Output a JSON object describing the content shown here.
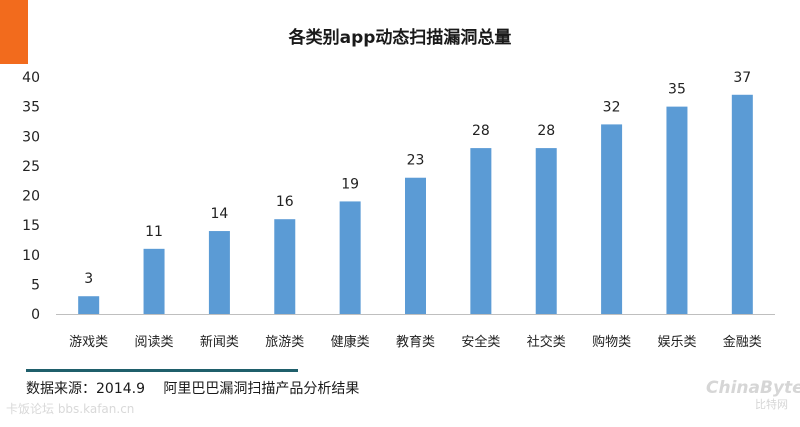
{
  "colors": {
    "accent": "#f26b1d",
    "bar": "#5b9bd5",
    "axis": "#bfbfbf",
    "rule": "#1f5f6b"
  },
  "chart_data": {
    "type": "bar",
    "title": "各类别app动态扫描漏洞总量",
    "xlabel": "",
    "ylabel": "",
    "categories": [
      "游戏类",
      "阅读类",
      "新闻类",
      "旅游类",
      "健康类",
      "教育类",
      "安全类",
      "社交类",
      "购物类",
      "娱乐类",
      "金融类"
    ],
    "values": [
      3,
      11,
      14,
      16,
      19,
      23,
      28,
      28,
      32,
      35,
      37
    ],
    "ylim": [
      0,
      40
    ],
    "yticks": [
      0,
      5,
      10,
      15,
      20,
      25,
      30,
      35,
      40
    ],
    "grid": false,
    "legend": "none"
  },
  "footer": {
    "source": "数据来源：2014.9　 阿里巴巴漏洞扫描产品分析结果"
  },
  "watermarks": {
    "forum": "卡饭论坛 bbs.kafan.cn",
    "logo_top": "ChinaByte",
    "logo_bottom": "比特网"
  }
}
